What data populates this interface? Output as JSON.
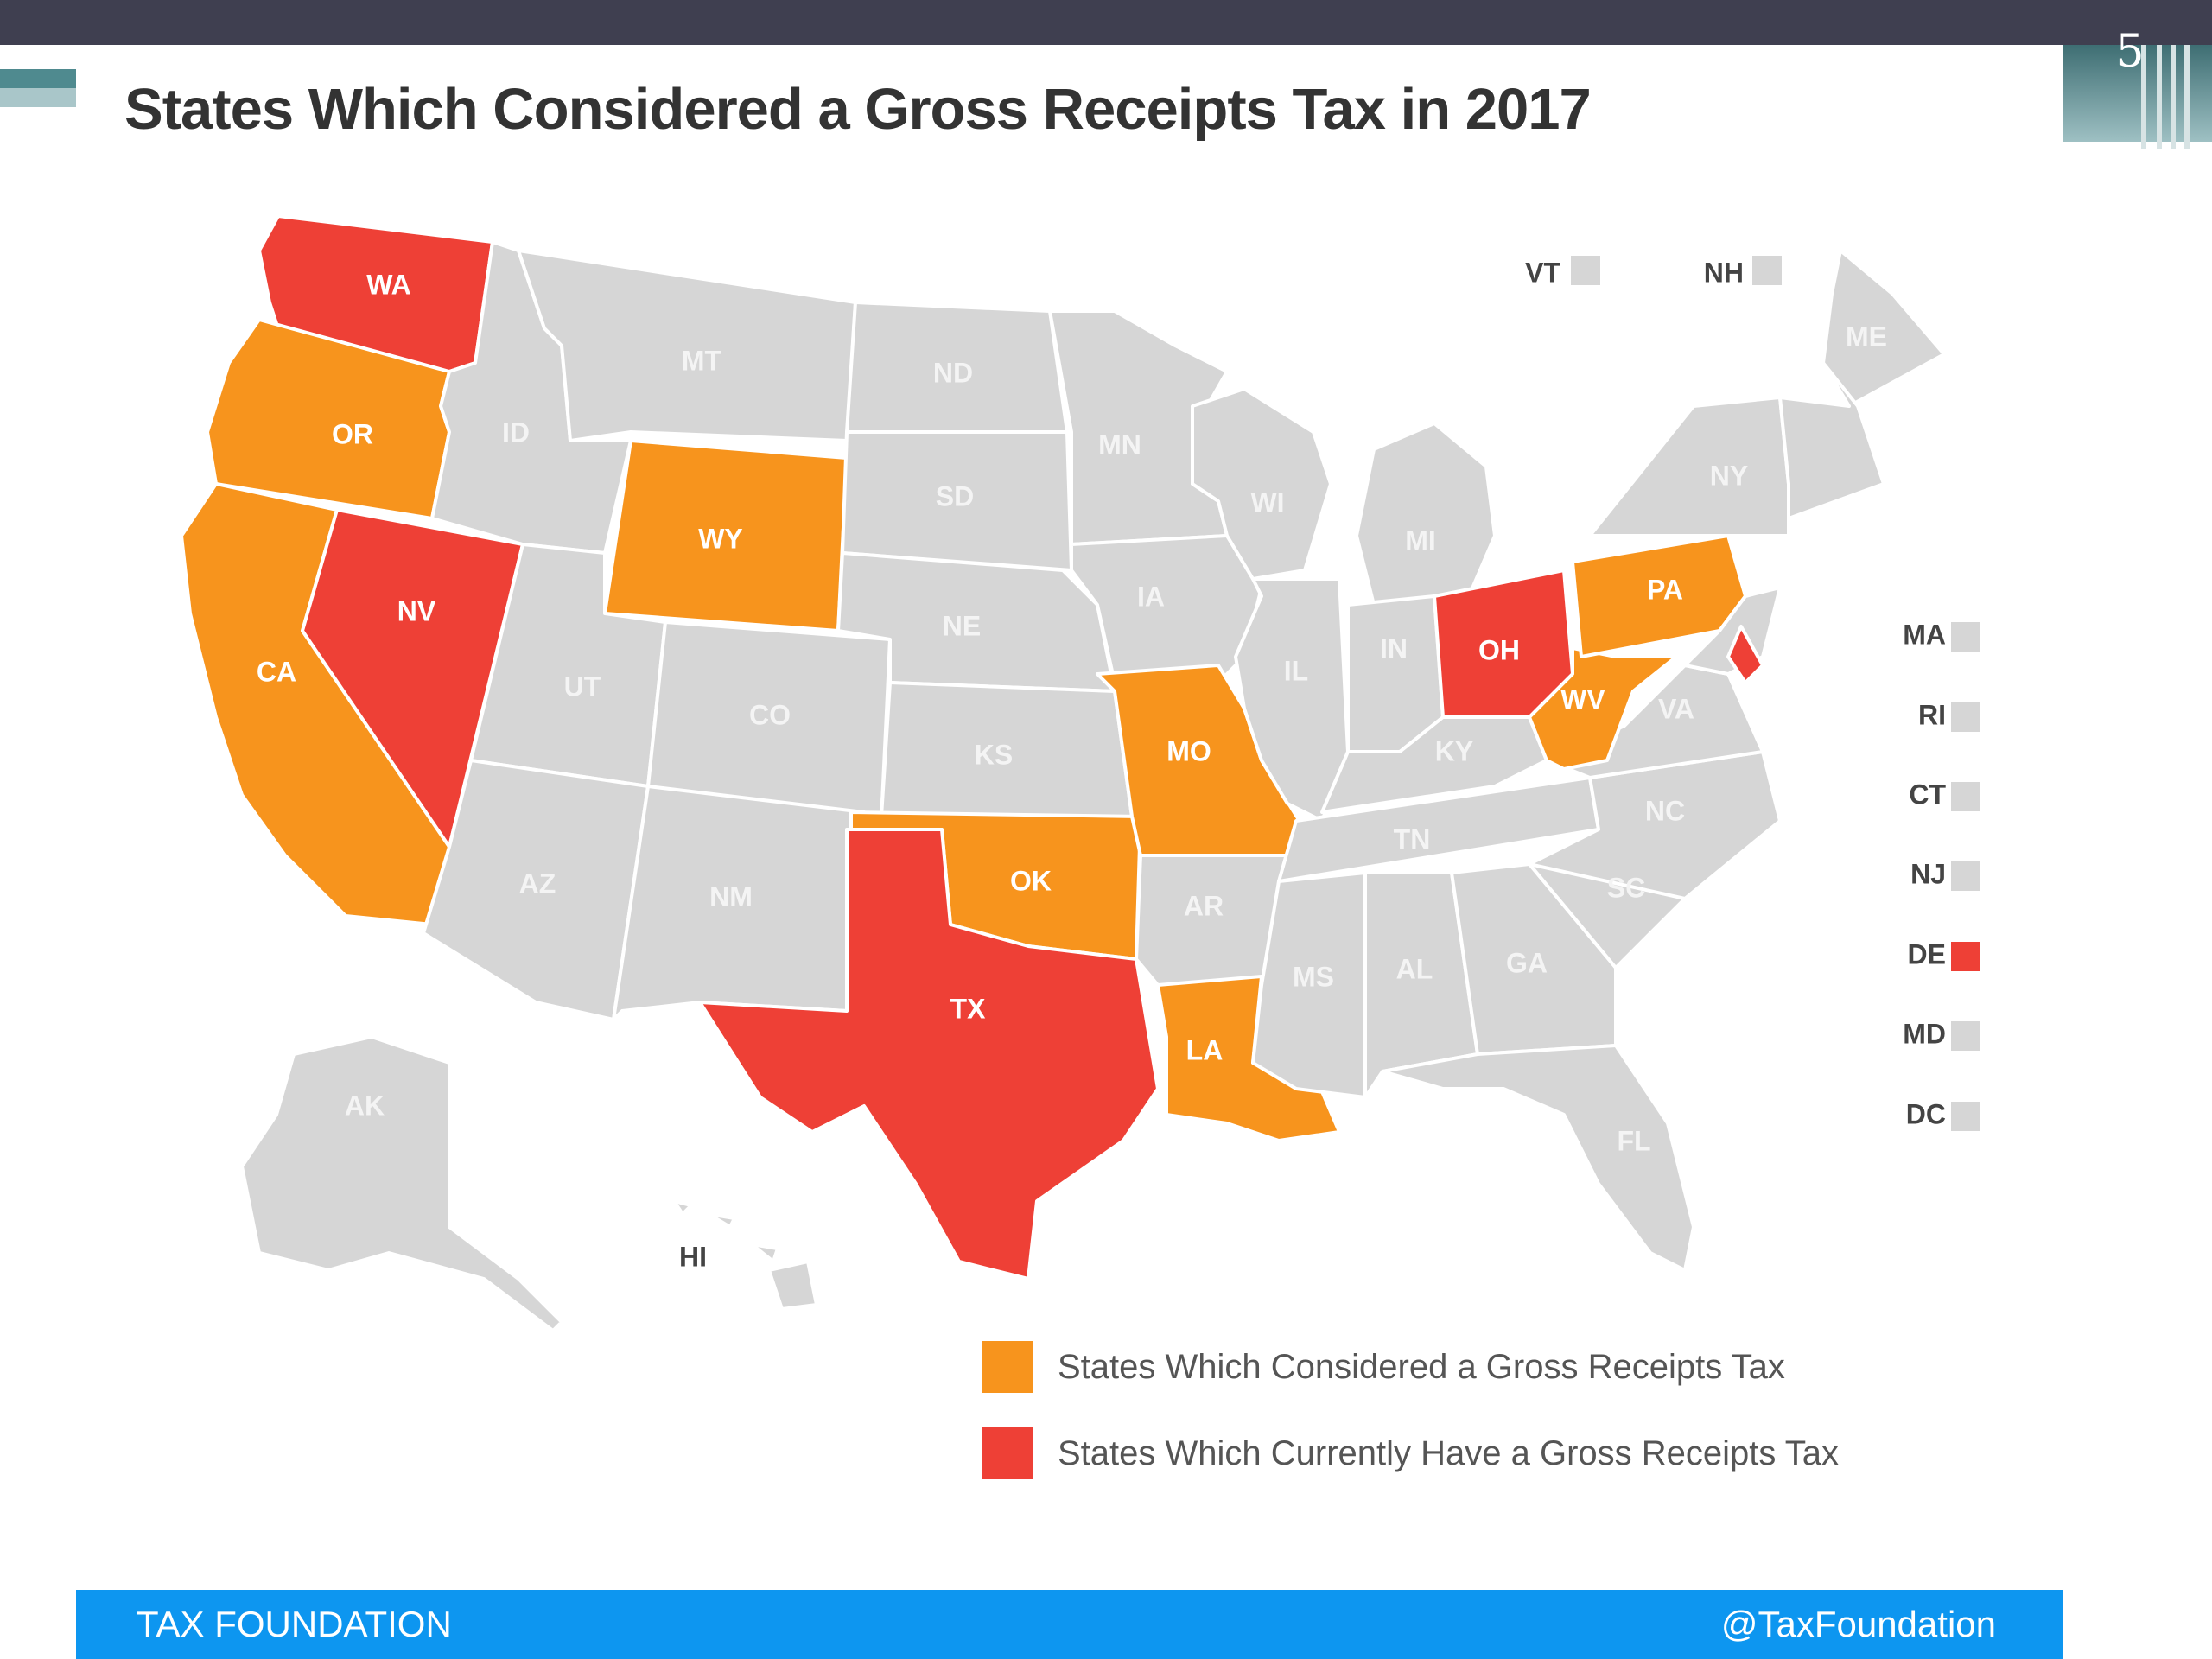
{
  "slide": {
    "number": "5"
  },
  "title": "States Which Considered a Gross Receipts Tax in 2017",
  "colors": {
    "considered": "#f7941d",
    "current": "#ee4036",
    "neutral": "#d6d6d6",
    "footer": "#0d96f0",
    "header_bar": "#3f3f50"
  },
  "states": {
    "WA": {
      "label": "WA",
      "status": "current"
    },
    "OR": {
      "label": "OR",
      "status": "considered"
    },
    "CA": {
      "label": "CA",
      "status": "considered"
    },
    "NV": {
      "label": "NV",
      "status": "current"
    },
    "ID": {
      "label": "ID",
      "status": "none"
    },
    "MT": {
      "label": "MT",
      "status": "none"
    },
    "WY": {
      "label": "WY",
      "status": "considered"
    },
    "UT": {
      "label": "UT",
      "status": "none"
    },
    "CO": {
      "label": "CO",
      "status": "none"
    },
    "AZ": {
      "label": "AZ",
      "status": "none"
    },
    "NM": {
      "label": "NM",
      "status": "none"
    },
    "ND": {
      "label": "ND",
      "status": "none"
    },
    "SD": {
      "label": "SD",
      "status": "none"
    },
    "NE": {
      "label": "NE",
      "status": "none"
    },
    "KS": {
      "label": "KS",
      "status": "none"
    },
    "OK": {
      "label": "OK",
      "status": "considered"
    },
    "TX": {
      "label": "TX",
      "status": "current"
    },
    "MN": {
      "label": "MN",
      "status": "none"
    },
    "IA": {
      "label": "IA",
      "status": "none"
    },
    "MO": {
      "label": "MO",
      "status": "considered"
    },
    "AR": {
      "label": "AR",
      "status": "none"
    },
    "LA": {
      "label": "LA",
      "status": "considered"
    },
    "WI": {
      "label": "WI",
      "status": "none"
    },
    "IL": {
      "label": "IL",
      "status": "none"
    },
    "MI": {
      "label": "MI",
      "status": "none"
    },
    "IN": {
      "label": "IN",
      "status": "none"
    },
    "OH": {
      "label": "OH",
      "status": "current"
    },
    "KY": {
      "label": "KY",
      "status": "none"
    },
    "TN": {
      "label": "TN",
      "status": "none"
    },
    "MS": {
      "label": "MS",
      "status": "none"
    },
    "AL": {
      "label": "AL",
      "status": "none"
    },
    "GA": {
      "label": "GA",
      "status": "none"
    },
    "FL": {
      "label": "FL",
      "status": "none"
    },
    "SC": {
      "label": "SC",
      "status": "none"
    },
    "NC": {
      "label": "NC",
      "status": "none"
    },
    "VA": {
      "label": "VA",
      "status": "none"
    },
    "WV": {
      "label": "WV",
      "status": "considered"
    },
    "PA": {
      "label": "PA",
      "status": "considered"
    },
    "NY": {
      "label": "NY",
      "status": "none"
    },
    "ME": {
      "label": "ME",
      "status": "none"
    },
    "DE": {
      "label": "DE",
      "status": "current"
    },
    "AK": {
      "label": "AK",
      "status": "none"
    },
    "HI": {
      "label": "HI",
      "status": "none"
    }
  },
  "small_states": [
    {
      "label": "VT",
      "status": "none"
    },
    {
      "label": "NH",
      "status": "none"
    },
    {
      "label": "MA",
      "status": "none"
    },
    {
      "label": "RI",
      "status": "none"
    },
    {
      "label": "CT",
      "status": "none"
    },
    {
      "label": "NJ",
      "status": "none"
    },
    {
      "label": "DE",
      "status": "current"
    },
    {
      "label": "MD",
      "status": "none"
    },
    {
      "label": "DC",
      "status": "none"
    }
  ],
  "legend": {
    "considered": "States Which Considered a Gross Receipts Tax",
    "current": "States Which Currently Have a Gross Receipts Tax"
  },
  "footer": {
    "left": "TAX FOUNDATION",
    "right": "@TaxFoundation"
  }
}
